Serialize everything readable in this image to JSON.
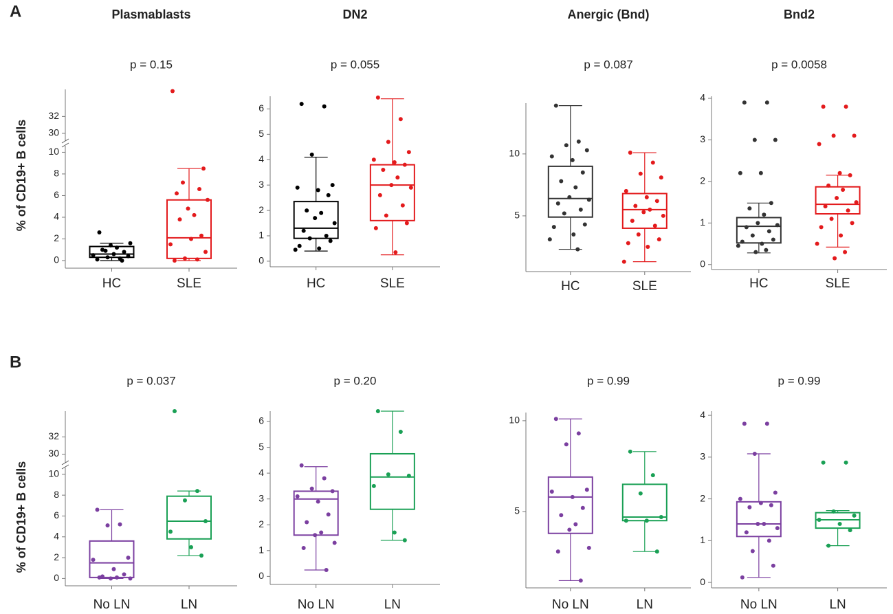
{
  "rows": [
    {
      "label": "A",
      "y_label": "% of CD19+ B cells"
    },
    {
      "label": "B",
      "y_label": "% of CD19+ B cells"
    }
  ],
  "chart_data": [
    {
      "type": "box",
      "title": "Plasmablasts",
      "subtitle": "p = 0.15",
      "categories": [
        "HC",
        "SLE"
      ],
      "colors": [
        "#000000",
        "#e31a1c"
      ],
      "boxes": [
        {
          "whisker_low": 0,
          "q1": 0.3,
          "median": 0.6,
          "q3": 1.3,
          "whisker_high": 1.6,
          "points": [
            0.1,
            0.2,
            0.3,
            0.4,
            0.5,
            0.6,
            0.8,
            1.0,
            1.2,
            1.4,
            1.6,
            2.6,
            0.0,
            0.9
          ]
        },
        {
          "whisker_low": 0,
          "q1": 0.2,
          "median": 2.1,
          "q3": 5.6,
          "whisker_high": 8.5,
          "points": [
            0.0,
            0.1,
            0.2,
            0.8,
            1.5,
            2.0,
            2.3,
            3.8,
            4.2,
            4.8,
            5.6,
            6.2,
            6.6,
            7.2,
            8.5,
            35
          ]
        }
      ],
      "ylim": [
        -0.7,
        10.6
      ],
      "yticks": [
        0,
        2,
        4,
        6,
        8,
        10
      ],
      "ylim_upper": [
        29.1,
        35.2
      ],
      "yticks_upper": [
        30,
        32
      ]
    },
    {
      "type": "box",
      "title": "DN2",
      "subtitle": "p = 0.055",
      "categories": [
        "HC",
        "SLE"
      ],
      "colors": [
        "#000000",
        "#e31a1c"
      ],
      "boxes": [
        {
          "whisker_low": 0.4,
          "q1": 0.9,
          "median": 1.3,
          "q3": 2.35,
          "whisker_high": 4.1,
          "points": [
            6.2,
            6.1,
            4.2,
            3.0,
            2.9,
            2.8,
            2.6,
            2.0,
            1.9,
            1.7,
            1.5,
            1.2,
            1.0,
            0.9,
            0.8,
            0.6,
            0.5,
            0.45
          ]
        },
        {
          "whisker_low": 0.25,
          "q1": 1.6,
          "median": 3.0,
          "q3": 3.8,
          "whisker_high": 6.4,
          "points": [
            6.45,
            5.6,
            4.7,
            4.3,
            4.0,
            3.9,
            3.8,
            3.6,
            3.3,
            3.0,
            2.9,
            2.6,
            2.2,
            1.8,
            1.5,
            1.3,
            0.35
          ]
        }
      ],
      "ylim": [
        -0.22,
        6.5
      ],
      "yticks": [
        0,
        1,
        2,
        3,
        4,
        5,
        6
      ]
    },
    {
      "type": "box",
      "title": "Anergic (Bnd)",
      "subtitle": "p = 0.087",
      "categories": [
        "HC",
        "SLE"
      ],
      "colors": [
        "#333333",
        "#e31a1c"
      ],
      "boxes": [
        {
          "whisker_low": 2.3,
          "q1": 4.9,
          "median": 6.4,
          "q3": 9.0,
          "whisker_high": 13.9,
          "points": [
            13.9,
            11,
            10.7,
            10.3,
            9.8,
            9.5,
            8.5,
            7.8,
            7.3,
            6.5,
            6.3,
            6,
            5.5,
            5.2,
            4.3,
            4.1,
            3.5,
            3.1,
            2.3
          ]
        },
        {
          "whisker_low": 1.3,
          "q1": 4.0,
          "median": 5.5,
          "q3": 6.8,
          "whisker_high": 10.1,
          "points": [
            10.1,
            9.3,
            8.4,
            8.1,
            7.0,
            6.5,
            6.2,
            5.8,
            5.5,
            5.3,
            5.0,
            4.6,
            4.2,
            3.5,
            3.1,
            2.8,
            2.5,
            1.3
          ]
        }
      ],
      "ylim": [
        0.5,
        14.1
      ],
      "yticks": [
        5,
        10
      ]
    },
    {
      "type": "box",
      "title": "Bnd2",
      "subtitle": "p = 0.0058",
      "categories": [
        "HC",
        "SLE"
      ],
      "colors": [
        "#333333",
        "#e31a1c"
      ],
      "boxes": [
        {
          "whisker_low": 0.28,
          "q1": 0.52,
          "median": 0.92,
          "q3": 1.13,
          "whisker_high": 1.48,
          "points": [
            3.9,
            3.9,
            3.0,
            3.0,
            2.2,
            2.2,
            1.48,
            1.35,
            1.2,
            1.0,
            0.95,
            0.9,
            0.8,
            0.7,
            0.6,
            0.55,
            0.5,
            0.45,
            0.35,
            0.3
          ]
        },
        {
          "whisker_low": 0.42,
          "q1": 1.22,
          "median": 1.45,
          "q3": 1.87,
          "whisker_high": 2.15,
          "points": [
            3.8,
            3.8,
            3.1,
            3.1,
            2.9,
            2.2,
            2.15,
            1.9,
            1.8,
            1.6,
            1.5,
            1.4,
            1.3,
            1.1,
            1.0,
            0.9,
            0.7,
            0.5,
            0.3,
            0.15
          ]
        }
      ],
      "ylim": [
        -0.12,
        4.05
      ],
      "yticks": [
        0,
        1,
        2,
        3,
        4
      ]
    },
    {
      "type": "box",
      "subtitle": "p = 0.037",
      "categories": [
        "No LN",
        "LN"
      ],
      "colors": [
        "#7b3fa0",
        "#1aa055"
      ],
      "boxes": [
        {
          "whisker_low": 0,
          "q1": 0.1,
          "median": 1.5,
          "q3": 3.6,
          "whisker_high": 6.6,
          "points": [
            6.6,
            5.2,
            5.1,
            2.0,
            1.8,
            0.9,
            0.4,
            0.2,
            0.1,
            0,
            0,
            0.1
          ]
        },
        {
          "whisker_low": 2.2,
          "q1": 3.8,
          "median": 5.5,
          "q3": 7.9,
          "whisker_high": 8.4,
          "points": [
            35,
            8.4,
            7.5,
            5.5,
            4.5,
            3.0,
            2.2
          ]
        }
      ],
      "ylim": [
        -0.7,
        10.65
      ],
      "yticks": [
        0,
        2,
        4,
        6,
        8,
        10
      ],
      "ylim_upper": [
        29,
        35
      ],
      "yticks_upper": [
        30,
        32
      ]
    },
    {
      "type": "box",
      "subtitle": "p = 0.20",
      "categories": [
        "No LN",
        "LN"
      ],
      "colors": [
        "#7b3fa0",
        "#1aa055"
      ],
      "boxes": [
        {
          "whisker_low": 0.25,
          "q1": 1.6,
          "median": 3.0,
          "q3": 3.3,
          "whisker_high": 4.25,
          "points": [
            4.3,
            3.8,
            3.4,
            3.3,
            3.1,
            2.9,
            2.4,
            2.1,
            1.7,
            1.6,
            1.3,
            1.1,
            0.25
          ]
        },
        {
          "whisker_low": 1.4,
          "q1": 2.6,
          "median": 3.85,
          "q3": 4.75,
          "whisker_high": 6.4,
          "points": [
            6.4,
            5.6,
            3.95,
            3.9,
            3.5,
            1.7,
            1.4
          ]
        }
      ],
      "ylim": [
        -0.31,
        6.4
      ],
      "yticks": [
        0,
        1,
        2,
        3,
        4,
        5,
        6
      ]
    },
    {
      "type": "box",
      "subtitle": "p = 0.99",
      "categories": [
        "No LN",
        "LN"
      ],
      "colors": [
        "#7b3fa0",
        "#1aa055"
      ],
      "boxes": [
        {
          "whisker_low": 1.2,
          "q1": 3.8,
          "median": 5.8,
          "q3": 6.9,
          "whisker_high": 10.1,
          "points": [
            10.1,
            9.3,
            8.7,
            6.2,
            6.1,
            5.8,
            5.2,
            4.8,
            4.3,
            4.0,
            3.0,
            2.8,
            1.2
          ]
        },
        {
          "whisker_low": 2.8,
          "q1": 4.5,
          "median": 4.7,
          "q3": 6.5,
          "whisker_high": 8.3,
          "points": [
            8.3,
            7.0,
            6.0,
            4.7,
            4.5,
            4.5,
            2.8
          ]
        }
      ],
      "ylim": [
        0.8,
        10.45
      ],
      "yticks": [
        5,
        10
      ]
    },
    {
      "type": "box",
      "subtitle": "p = 0.99",
      "categories": [
        "No LN",
        "LN"
      ],
      "colors": [
        "#7b3fa0",
        "#1aa055"
      ],
      "boxes": [
        {
          "whisker_low": 0.12,
          "q1": 1.1,
          "median": 1.4,
          "q3": 1.93,
          "whisker_high": 3.08,
          "points": [
            3.8,
            3.8,
            3.08,
            2.15,
            2.0,
            1.9,
            1.85,
            1.8,
            1.4,
            1.4,
            1.3,
            1.2,
            1.0,
            0.75,
            0.4,
            0.12
          ]
        },
        {
          "whisker_low": 0.88,
          "q1": 1.3,
          "median": 1.5,
          "q3": 1.67,
          "whisker_high": 1.72,
          "points": [
            2.87,
            2.87,
            1.7,
            1.6,
            1.5,
            1.4,
            1.25,
            0.88
          ]
        }
      ],
      "ylim": [
        -0.13,
        4.1
      ],
      "yticks": [
        0,
        1,
        2,
        3,
        4
      ]
    }
  ]
}
